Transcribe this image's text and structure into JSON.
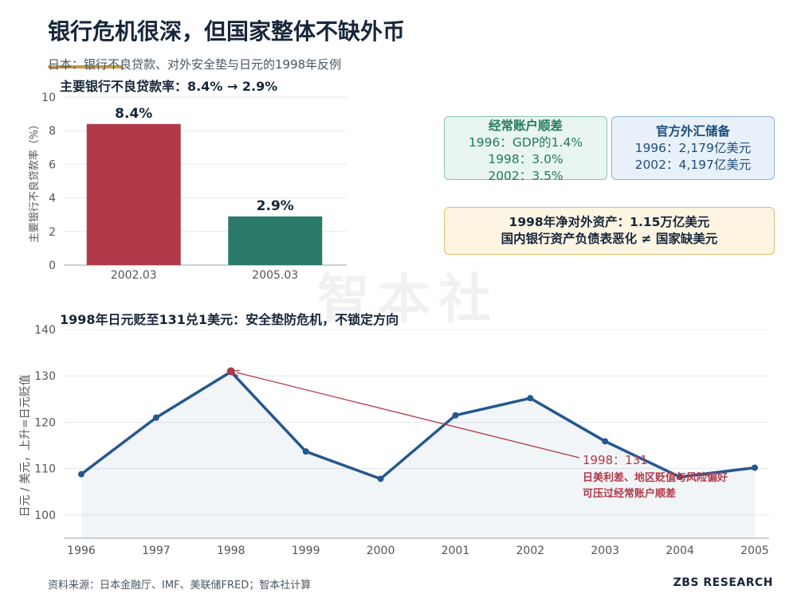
{
  "title": "银行危机很深，但国家整体不缺外币",
  "subtitle": "日本：银行不良贷款、对外安全垫与日元的1998年反例",
  "watermark": "智本社",
  "colors": {
    "bar_2002": "#b03a48",
    "bar_2005": "#2b7a6a",
    "line": "#25578f",
    "highlight": "#b03a48"
  },
  "top_chart": {
    "section_title": "主要银行不良贷款率：8.4% → 2.9%"
  },
  "bottom_chart": {
    "section_title": "1998年日元贬至131兑1美元：安全垫防危机，不锁定方向"
  },
  "boxes": {
    "current_account": {
      "head": "经常账户顺差",
      "lines": [
        "1996：GDP的1.4%",
        "1998：3.0%",
        "2002：3.5%"
      ]
    },
    "reserves": {
      "head": "官方外汇储备",
      "lines": [
        "1996：2,179亿美元",
        "2002：4,197亿美元"
      ]
    },
    "net_assets": {
      "lines": [
        "1998年净对外资产：1.15万亿美元",
        "国内银行资产负债表恶化 ≠ 国家缺美元"
      ]
    }
  },
  "chart_data": [
    {
      "type": "bar",
      "title": "主要银行不良贷款率：8.4% → 2.9%",
      "categories": [
        "2002.03",
        "2005.03"
      ],
      "values": [
        8.4,
        2.9
      ],
      "data_labels": [
        "8.4%",
        "2.9%"
      ],
      "ylabel": "主要银行不良贷款率（%）",
      "ylim": [
        0,
        10
      ],
      "yticks": [
        0,
        2,
        4,
        6,
        8,
        10
      ],
      "grid": true
    },
    {
      "type": "line",
      "title": "1998年日元贬至131兑1美元：安全垫防危机，不锁定方向",
      "x": [
        1996,
        1997,
        1998,
        1999,
        2000,
        2001,
        2002,
        2003,
        2004,
        2005
      ],
      "values": [
        108.8,
        121.0,
        130.9,
        113.7,
        107.8,
        121.5,
        125.2,
        115.9,
        108.2,
        110.2
      ],
      "ylabel": "日元 / 美元，上升=日元贬值",
      "ylim": [
        95,
        140
      ],
      "yticks": [
        100,
        110,
        120,
        130,
        140
      ],
      "grid": true,
      "highlight": {
        "x": 1998,
        "y": 131
      },
      "annotation": {
        "lines": [
          "1998：131",
          "日美利差、地区贬值与风险偏好",
          "可压过经常账户顺差"
        ]
      }
    }
  ],
  "footer": {
    "source": "资料来源：日本金融厅、IMF、美联储FRED；智本社计算",
    "brand": "ZBS RESEARCH"
  }
}
